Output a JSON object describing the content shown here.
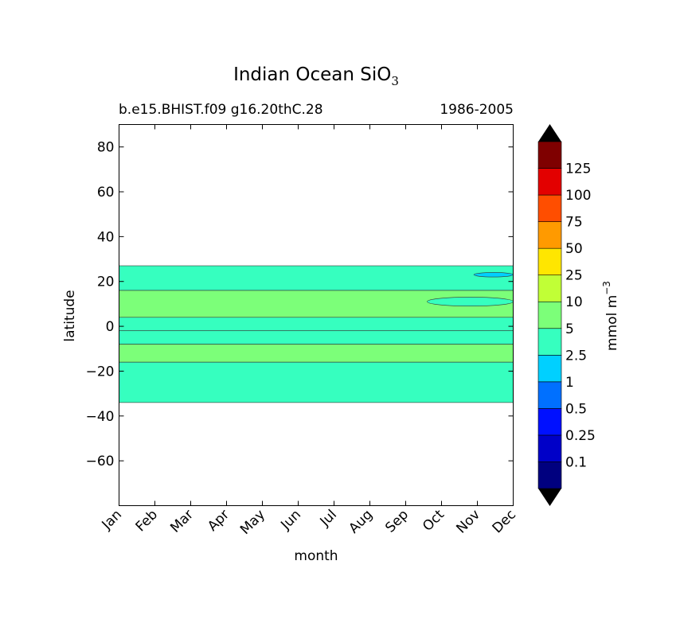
{
  "chart_data": {
    "type": "heatmap",
    "title": "Indian Ocean SiO",
    "title_subscript": "3",
    "subtitle_left": "b.e15.BHIST.f09 g16.20thC.28",
    "subtitle_right": "1986-2005",
    "xlabel": "month",
    "ylabel": "latitude",
    "x_categories": [
      "Jan",
      "Feb",
      "Mar",
      "Apr",
      "May",
      "Jun",
      "Jul",
      "Aug",
      "Sep",
      "Oct",
      "Nov",
      "Dec"
    ],
    "ylim": [
      -80,
      90
    ],
    "yticks": [
      80,
      60,
      40,
      20,
      0,
      -20,
      -40,
      -60
    ],
    "ytick_labels": [
      "80",
      "60",
      "40",
      "20",
      "0",
      "−20",
      "−40",
      "−60"
    ],
    "colorbar": {
      "label": "mmol m",
      "label_superscript": "−3",
      "levels": [
        0.1,
        0.25,
        0.5,
        1,
        2.5,
        5,
        10,
        25,
        50,
        75,
        100,
        125
      ],
      "level_labels": [
        "0.1",
        "0.25",
        "0.5",
        "1",
        "2.5",
        "5",
        "10",
        "25",
        "50",
        "75",
        "100",
        "125"
      ],
      "colors": [
        "#00007f",
        "#0000c8",
        "#0010ff",
        "#0070ff",
        "#00d0ff",
        "#36ffbf",
        "#7cff79",
        "#c1ff36",
        "#ffe600",
        "#ff9a00",
        "#ff4e00",
        "#e30000",
        "#7f0000"
      ],
      "extend": "both"
    },
    "bands": [
      {
        "lat_from": 27,
        "lat_to": 16,
        "level": "2.5-5",
        "color": "#36ffbf"
      },
      {
        "lat_from": 16,
        "lat_to": 4,
        "level": "5-10",
        "color": "#7cff79"
      },
      {
        "lat_from": 4,
        "lat_to": -2,
        "level": "2.5-5",
        "color": "#36ffbf"
      },
      {
        "lat_from": -2,
        "lat_to": -8,
        "level": "2.5-5",
        "color": "#36ffbf"
      },
      {
        "lat_from": -8,
        "lat_to": -16,
        "level": "5-10",
        "color": "#7cff79"
      },
      {
        "lat_from": -16,
        "lat_to": -34,
        "level": "2.5-5",
        "color": "#36ffbf"
      }
    ],
    "features": [
      {
        "desc": "low values",
        "month_from": 9.9,
        "month_to": 11.0,
        "lat_from": 24,
        "lat_to": 22,
        "color": "#00d0ff"
      },
      {
        "desc": "high values",
        "month_from": 8.6,
        "month_to": 11.0,
        "lat_from": 13,
        "lat_to": 9,
        "color": "#36ffbf"
      }
    ]
  }
}
